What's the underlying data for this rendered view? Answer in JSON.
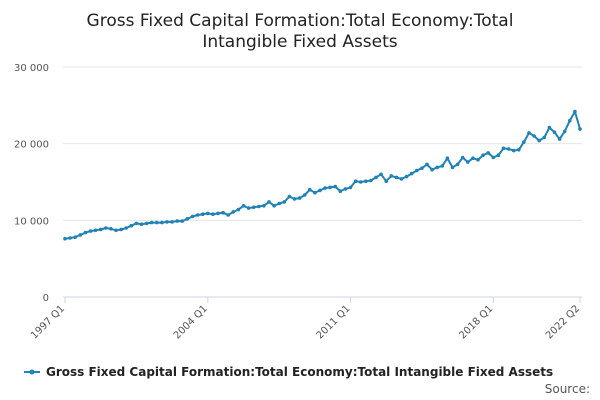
{
  "chart_data": {
    "type": "line",
    "title_lines": [
      "Gross Fixed Capital Formation:Total Economy:Total",
      "Intangible Fixed Assets"
    ],
    "xlabel": "",
    "ylabel": "",
    "ylim": [
      0,
      30000
    ],
    "y_ticks": [
      "0",
      "10 000",
      "20 000",
      "30 000"
    ],
    "x_tick_labels": [
      "1997 Q1",
      "2004 Q1",
      "2011 Q1",
      "2018 Q1",
      "2022 Q2"
    ],
    "grid": true,
    "legend_position": "bottom",
    "source_label": "Source:",
    "color": "#1f82b8",
    "series": [
      {
        "name": "Gross Fixed Capital Formation:Total Economy:Total Intangible Fixed Assets",
        "x": [
          "1997 Q1",
          "1997 Q2",
          "1997 Q3",
          "1997 Q4",
          "1998 Q1",
          "1998 Q2",
          "1998 Q3",
          "1998 Q4",
          "1999 Q1",
          "1999 Q2",
          "1999 Q3",
          "1999 Q4",
          "2000 Q1",
          "2000 Q2",
          "2000 Q3",
          "2000 Q4",
          "2001 Q1",
          "2001 Q2",
          "2001 Q3",
          "2001 Q4",
          "2002 Q1",
          "2002 Q2",
          "2002 Q3",
          "2002 Q4",
          "2003 Q1",
          "2003 Q2",
          "2003 Q3",
          "2003 Q4",
          "2004 Q1",
          "2004 Q2",
          "2004 Q3",
          "2004 Q4",
          "2005 Q1",
          "2005 Q2",
          "2005 Q3",
          "2005 Q4",
          "2006 Q1",
          "2006 Q2",
          "2006 Q3",
          "2006 Q4",
          "2007 Q1",
          "2007 Q2",
          "2007 Q3",
          "2007 Q4",
          "2008 Q1",
          "2008 Q2",
          "2008 Q3",
          "2008 Q4",
          "2009 Q1",
          "2009 Q2",
          "2009 Q3",
          "2009 Q4",
          "2010 Q1",
          "2010 Q2",
          "2010 Q3",
          "2010 Q4",
          "2011 Q1",
          "2011 Q2",
          "2011 Q3",
          "2011 Q4",
          "2012 Q1",
          "2012 Q2",
          "2012 Q3",
          "2012 Q4",
          "2013 Q1",
          "2013 Q2",
          "2013 Q3",
          "2013 Q4",
          "2014 Q1",
          "2014 Q2",
          "2014 Q3",
          "2014 Q4",
          "2015 Q1",
          "2015 Q2",
          "2015 Q3",
          "2015 Q4",
          "2016 Q1",
          "2016 Q2",
          "2016 Q3",
          "2016 Q4",
          "2017 Q1",
          "2017 Q2",
          "2017 Q3",
          "2017 Q4",
          "2018 Q1",
          "2018 Q2",
          "2018 Q3",
          "2018 Q4",
          "2019 Q1",
          "2019 Q2",
          "2019 Q3",
          "2019 Q4",
          "2020 Q1",
          "2020 Q2",
          "2020 Q3",
          "2020 Q4",
          "2021 Q1",
          "2021 Q2",
          "2021 Q3",
          "2021 Q4",
          "2022 Q1",
          "2022 Q2"
        ],
        "values": [
          7600,
          7700,
          7800,
          8100,
          8400,
          8600,
          8700,
          8800,
          9000,
          8900,
          8700,
          8800,
          9000,
          9300,
          9600,
          9500,
          9600,
          9700,
          9700,
          9700,
          9800,
          9800,
          9900,
          9900,
          10200,
          10500,
          10700,
          10800,
          10900,
          10800,
          10900,
          11000,
          10700,
          11100,
          11400,
          11900,
          11600,
          11700,
          11800,
          11900,
          12400,
          11900,
          12200,
          12400,
          13100,
          12800,
          12900,
          13300,
          14000,
          13600,
          13900,
          14200,
          14300,
          14400,
          13800,
          14100,
          14300,
          15100,
          15000,
          15100,
          15200,
          15600,
          16000,
          15100,
          15800,
          15600,
          15400,
          15700,
          16100,
          16500,
          16800,
          17300,
          16600,
          16900,
          17100,
          18100,
          16900,
          17300,
          18200,
          17600,
          18100,
          17900,
          18500,
          18800,
          18200,
          18500,
          19400,
          19300,
          19100,
          19200,
          20200,
          21400,
          21000,
          20400,
          20800,
          22100,
          21500,
          20600,
          21600,
          23000,
          24200,
          21900
        ]
      }
    ]
  }
}
